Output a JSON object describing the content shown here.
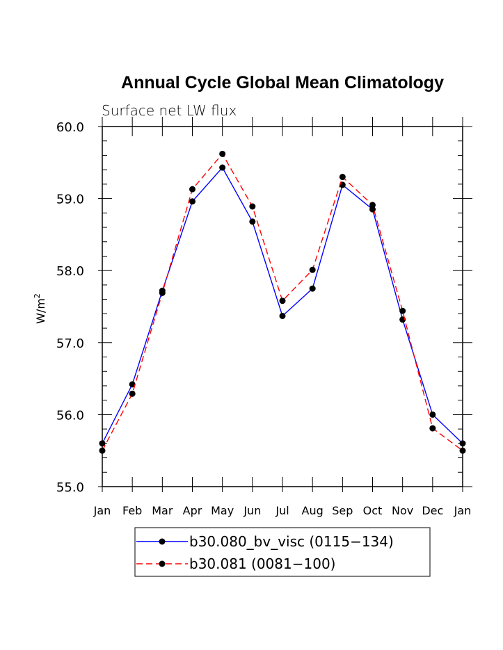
{
  "chart_data": {
    "type": "line",
    "title": "Annual Cycle Global Mean Climatology",
    "subtitle": "Surface net LW flux",
    "ylabel": "W/m",
    "ylabel_superscript": "2",
    "ylim": [
      55.0,
      60.0
    ],
    "yticks": [
      55.0,
      56.0,
      57.0,
      58.0,
      59.0,
      60.0
    ],
    "ytick_labels": [
      "55.0",
      "56.0",
      "57.0",
      "58.0",
      "59.0",
      "60.0"
    ],
    "categories": [
      "Jan",
      "Feb",
      "Mar",
      "Apr",
      "May",
      "Jun",
      "Jul",
      "Aug",
      "Sep",
      "Oct",
      "Nov",
      "Dec",
      "Jan"
    ],
    "series": [
      {
        "name": "b30.080_bv_visc (0115−134)",
        "color": "#0000ff",
        "dash": "solid",
        "values": [
          55.6,
          56.42,
          57.72,
          58.96,
          59.43,
          58.68,
          57.37,
          57.75,
          59.19,
          58.85,
          57.32,
          56.0,
          55.6
        ]
      },
      {
        "name": "b30.081 (0081−100)",
        "color": "#ff0000",
        "dash": "dashed",
        "values": [
          55.5,
          56.29,
          57.69,
          59.13,
          59.62,
          58.89,
          57.58,
          58.01,
          59.3,
          58.91,
          57.44,
          55.81,
          55.5
        ]
      }
    ],
    "legend": "bottom-center"
  }
}
